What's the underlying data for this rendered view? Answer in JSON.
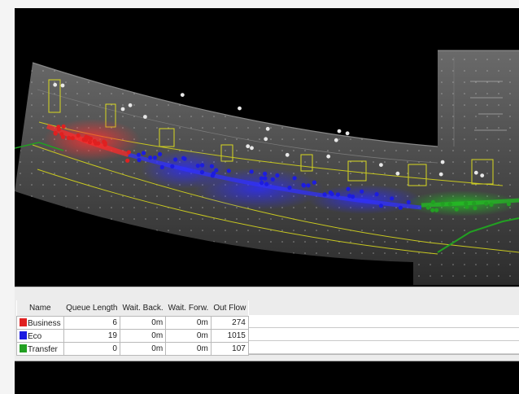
{
  "queue_table": {
    "columns": [
      "Name",
      "Queue Length",
      "Wait. Back.",
      "Wait. Forw.",
      "Out Flow"
    ],
    "rows": [
      {
        "name": "Business",
        "color": "#e02020",
        "queue_length": "6",
        "wait_back": "0m",
        "wait_forw": "0m",
        "out_flow": "274"
      },
      {
        "name": "Eco",
        "color": "#1c1ce0",
        "queue_length": "19",
        "wait_back": "0m",
        "wait_forw": "0m",
        "out_flow": "1015"
      },
      {
        "name": "Transfer",
        "color": "#22a022",
        "queue_length": "0",
        "wait_back": "0m",
        "wait_forw": "0m",
        "out_flow": "107"
      }
    ]
  },
  "colors": {
    "business": "#e02020",
    "eco": "#1c1ce0",
    "transfer": "#22a022",
    "path": "#c8c820",
    "background": "#000000"
  }
}
